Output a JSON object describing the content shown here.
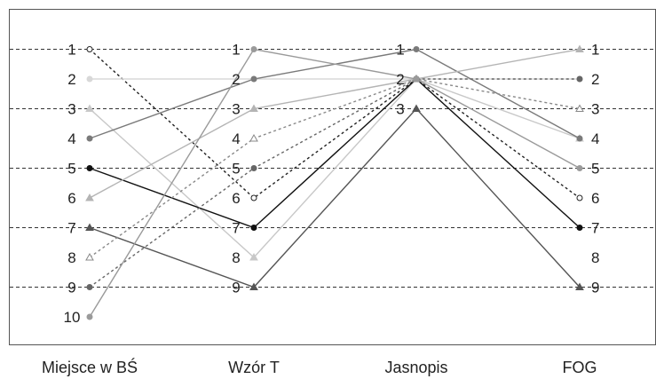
{
  "chart_data": {
    "type": "line",
    "categories": [
      "Miejsce w BŚ",
      "Wzór T",
      "Jasnopis",
      "FOG"
    ],
    "rank_labels": [
      [
        "1",
        "2",
        "3",
        "4",
        "5",
        "6",
        "7",
        "8",
        "9",
        "10"
      ],
      [
        "1",
        "2",
        "3",
        "4",
        "5",
        "6",
        "7",
        "8",
        "9"
      ],
      [
        "1",
        "2",
        "3"
      ],
      [
        "1",
        "2",
        "3",
        "4",
        "5",
        "6",
        "7",
        "8",
        "9"
      ]
    ],
    "ylim": [
      0,
      10
    ],
    "grid_at": [
      1,
      3,
      5,
      7,
      9
    ],
    "series": [
      {
        "values": [
          1,
          6,
          2,
          6
        ],
        "color": "#222222",
        "dash": "3,3",
        "marker": "circle-open"
      },
      {
        "values": [
          2,
          2,
          2,
          2
        ],
        "color": "#d8d8d8",
        "dash": "",
        "marker": "circle"
      },
      {
        "values": [
          3,
          8,
          2,
          4
        ],
        "color": "#c8c8c8",
        "dash": "",
        "marker": "triangle"
      },
      {
        "values": [
          4,
          2,
          1,
          4
        ],
        "color": "#7a7a7a",
        "dash": "",
        "marker": "circle"
      },
      {
        "values": [
          5,
          7,
          2,
          7
        ],
        "color": "#111111",
        "dash": "",
        "marker": "circle"
      },
      {
        "values": [
          6,
          3,
          2,
          1
        ],
        "color": "#b4b4b4",
        "dash": "",
        "marker": "triangle"
      },
      {
        "values": [
          7,
          9,
          3,
          9
        ],
        "color": "#555555",
        "dash": "",
        "marker": "triangle"
      },
      {
        "values": [
          8,
          4,
          2,
          3
        ],
        "color": "#888888",
        "dash": "3,3",
        "marker": "triangle-open"
      },
      {
        "values": [
          9,
          5,
          2,
          2
        ],
        "color": "#666666",
        "dash": "3,3",
        "marker": "circle"
      },
      {
        "values": [
          10,
          1,
          2,
          5
        ],
        "color": "#9a9a9a",
        "dash": "",
        "marker": "circle"
      }
    ]
  }
}
